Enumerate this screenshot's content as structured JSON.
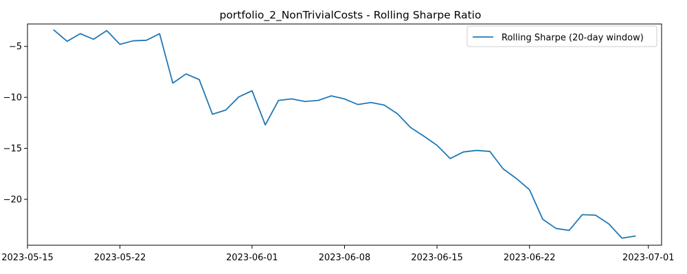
{
  "chart_data": {
    "type": "line",
    "title": "portfolio_2_NonTrivialCosts - Rolling Sharpe Ratio",
    "xlabel": "",
    "ylabel": "",
    "x_tick_labels": [
      "2023-05-15",
      "2023-05-22",
      "2023-06-01",
      "2023-06-08",
      "2023-06-15",
      "2023-06-22",
      "2023-07-01"
    ],
    "x_tick_dates": [
      "2023-05-15",
      "2023-05-22",
      "2023-06-01",
      "2023-06-08",
      "2023-06-15",
      "2023-06-22",
      "2023-07-01"
    ],
    "y_ticks": [
      -20,
      -15,
      -10,
      -5
    ],
    "y_tick_labels": [
      "−20",
      "−15",
      "−10",
      "−5"
    ],
    "xlim": [
      "2023-05-15",
      "2023-07-02"
    ],
    "ylim": [
      -24.5,
      -2.8
    ],
    "grid": false,
    "legend_position": "upper right",
    "series": [
      {
        "name": "Rolling Sharpe (20-day window)",
        "color": "#1f77b4",
        "x": [
          "2023-05-17",
          "2023-05-18",
          "2023-05-19",
          "2023-05-20",
          "2023-05-21",
          "2023-05-22",
          "2023-05-23",
          "2023-05-24",
          "2023-05-25",
          "2023-05-26",
          "2023-05-27",
          "2023-05-28",
          "2023-05-29",
          "2023-05-30",
          "2023-05-31",
          "2023-06-01",
          "2023-06-02",
          "2023-06-03",
          "2023-06-04",
          "2023-06-05",
          "2023-06-06",
          "2023-06-07",
          "2023-06-08",
          "2023-06-09",
          "2023-06-10",
          "2023-06-11",
          "2023-06-12",
          "2023-06-13",
          "2023-06-14",
          "2023-06-15",
          "2023-06-16",
          "2023-06-17",
          "2023-06-18",
          "2023-06-19",
          "2023-06-20",
          "2023-06-21",
          "2023-06-22",
          "2023-06-23",
          "2023-06-24",
          "2023-06-25",
          "2023-06-26",
          "2023-06-27",
          "2023-06-28",
          "2023-06-29",
          "2023-06-30"
        ],
        "values": [
          -3.4,
          -4.5,
          -3.75,
          -4.3,
          -3.45,
          -4.8,
          -4.45,
          -4.4,
          -3.75,
          -8.6,
          -7.7,
          -8.25,
          -11.65,
          -11.25,
          -9.95,
          -9.35,
          -12.7,
          -10.3,
          -10.15,
          -10.4,
          -10.3,
          -9.85,
          -10.15,
          -10.7,
          -10.5,
          -10.75,
          -11.6,
          -12.95,
          -13.8,
          -14.7,
          -16.0,
          -15.35,
          -15.2,
          -15.3,
          -17.0,
          -17.95,
          -19.05,
          -21.95,
          -22.85,
          -23.05,
          -21.5,
          -21.55,
          -22.4,
          -23.8,
          -23.6
        ]
      }
    ]
  }
}
